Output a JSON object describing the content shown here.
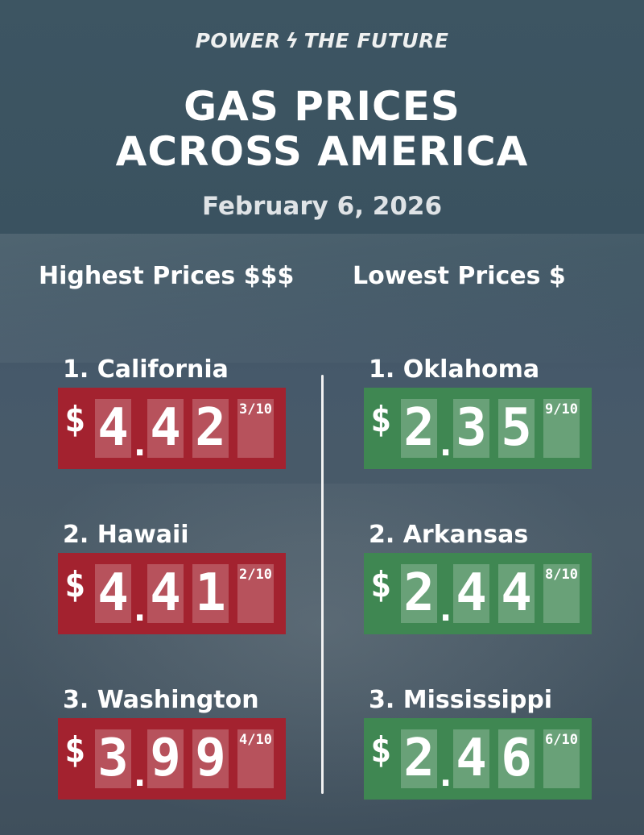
{
  "logo": {
    "left": "POWER",
    "right": "THE FUTURE"
  },
  "title": {
    "line1": "GAS PRICES",
    "line2": "ACROSS AMERICA"
  },
  "date": "February 6, 2026",
  "highest": {
    "heading": "Highest Prices $$$",
    "items": [
      {
        "label": "1. California",
        "digits": [
          "4",
          "4",
          "2"
        ],
        "fraction": "3/10",
        "color": "#a3222f"
      },
      {
        "label": "2. Hawaii",
        "digits": [
          "4",
          "4",
          "1"
        ],
        "fraction": "2/10",
        "color": "#a3222f"
      },
      {
        "label": "3. Washington",
        "digits": [
          "3",
          "9",
          "9"
        ],
        "fraction": "4/10",
        "color": "#a3222f"
      }
    ]
  },
  "lowest": {
    "heading": "Lowest Prices $",
    "items": [
      {
        "label": "1. Oklahoma",
        "digits": [
          "2",
          "3",
          "5"
        ],
        "fraction": "9/10",
        "color": "#3f8752"
      },
      {
        "label": "2. Arkansas",
        "digits": [
          "2",
          "4",
          "4"
        ],
        "fraction": "8/10",
        "color": "#3f8752"
      },
      {
        "label": "3. Mississippi",
        "digits": [
          "2",
          "4",
          "6"
        ],
        "fraction": "6/10",
        "color": "#3f8752"
      }
    ]
  },
  "currency": "$",
  "decimal": "."
}
